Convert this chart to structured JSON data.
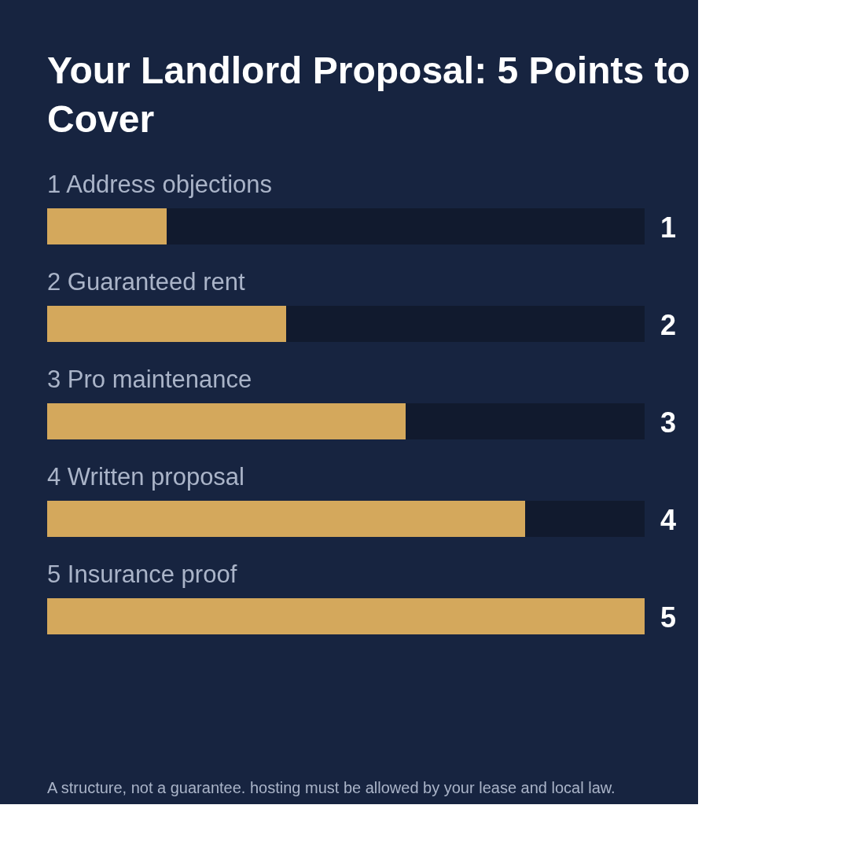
{
  "chart_data": {
    "type": "bar",
    "orientation": "horizontal",
    "title": "Your Landlord Proposal: 5 Points to Cover",
    "categories": [
      "1 Address objections",
      "2 Guaranteed rent",
      "3 Pro maintenance",
      "4 Written proposal",
      "5 Insurance proof"
    ],
    "values": [
      1,
      2,
      3,
      4,
      5
    ],
    "color": "#d4a85c",
    "xlim": [
      0,
      5
    ],
    "data_labels": true,
    "tick_labels": false,
    "annotations": [
      "A structure, not a guarantee. hosting must be allowed by your lease and local law."
    ]
  }
}
